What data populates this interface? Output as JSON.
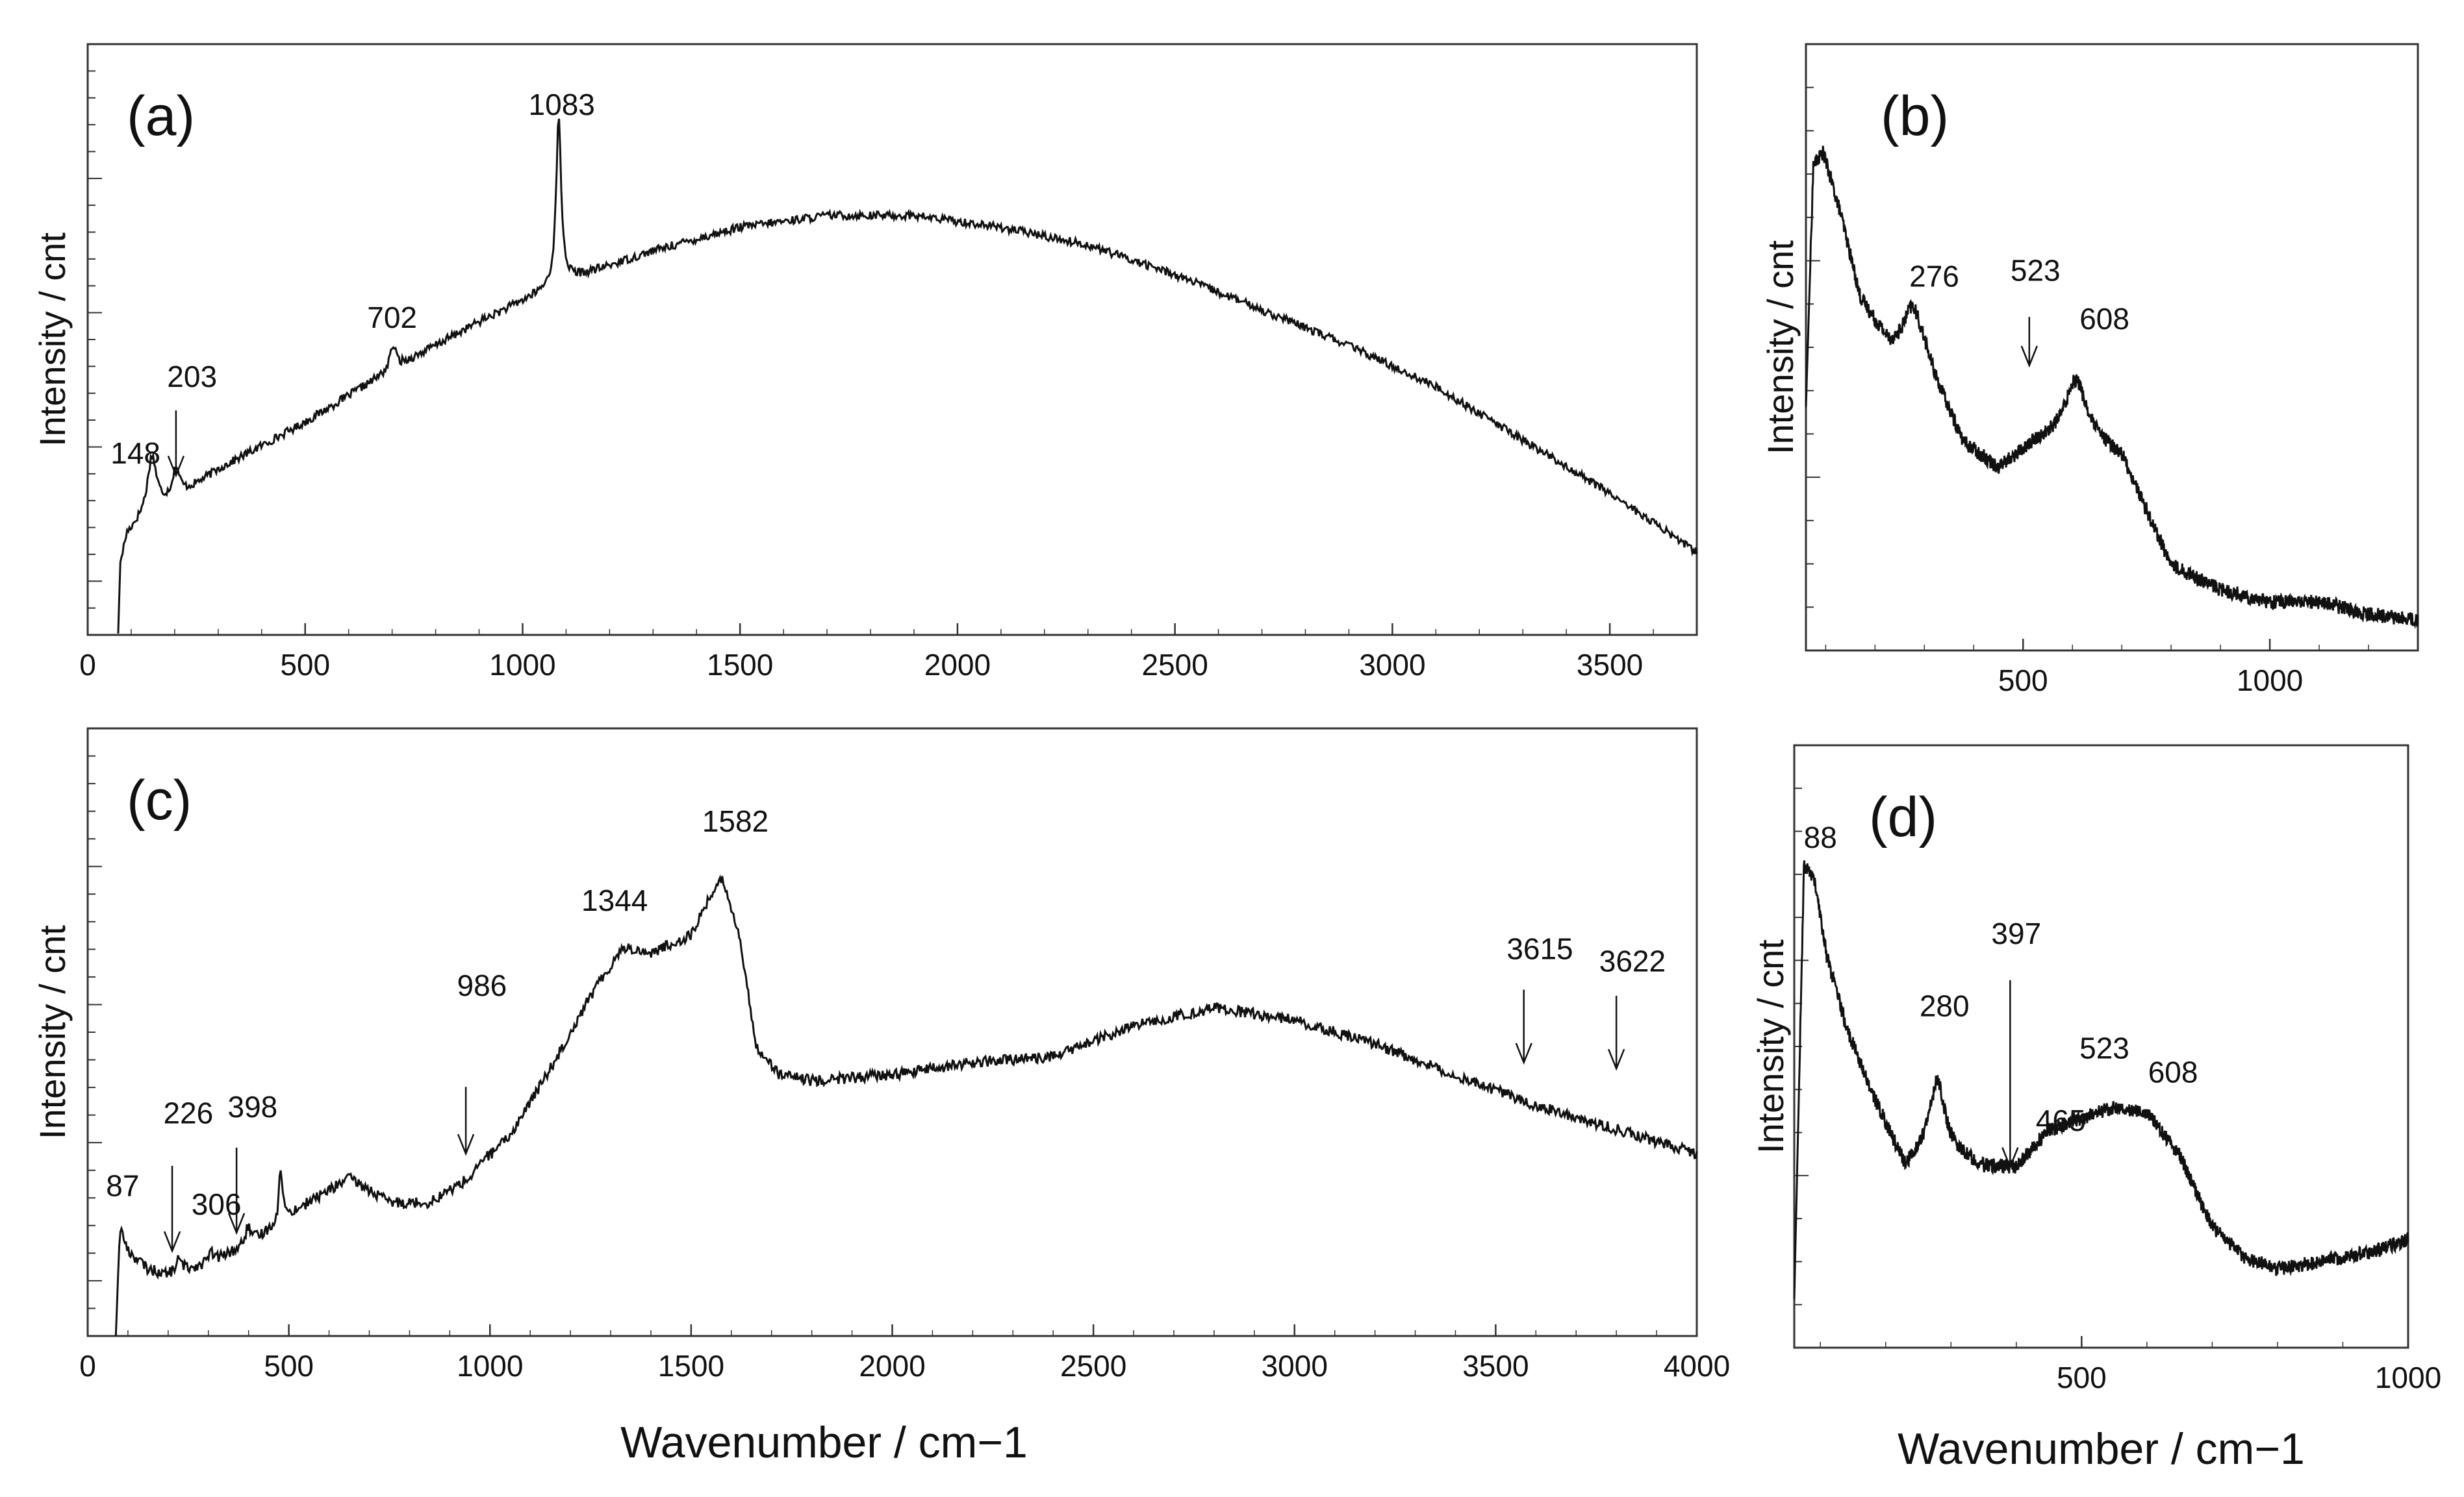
{
  "chart_data": [
    {
      "id": "a",
      "type": "line",
      "panel_label": "(a)",
      "ylabel": "Intensity / cnt",
      "xlabel": "",
      "xlim": [
        0,
        3700
      ],
      "ylim": [
        0,
        100
      ],
      "xticks": [
        0,
        500,
        1000,
        1500,
        2000,
        2500,
        3000,
        3500
      ],
      "x_tick_labels": [
        "0",
        "500",
        "1000",
        "1500",
        "2000",
        "2500",
        "3000",
        "3500"
      ],
      "baseline": [
        [
          70,
          0
        ],
        [
          75,
          12
        ],
        [
          90,
          17
        ],
        [
          140,
          21
        ],
        [
          200,
          23
        ],
        [
          300,
          28
        ],
        [
          500,
          36
        ],
        [
          700,
          45
        ],
        [
          900,
          53
        ],
        [
          1100,
          60
        ],
        [
          1300,
          65
        ],
        [
          1500,
          69
        ],
        [
          1700,
          71
        ],
        [
          1900,
          71
        ],
        [
          2100,
          69
        ],
        [
          2300,
          66
        ],
        [
          2500,
          61
        ],
        [
          2700,
          55
        ],
        [
          2900,
          49
        ],
        [
          3100,
          42
        ],
        [
          3300,
          33
        ],
        [
          3500,
          24
        ],
        [
          3700,
          14
        ]
      ],
      "peaks": [
        {
          "x": 148,
          "height": 9,
          "width": 12
        },
        {
          "x": 203,
          "height": 5,
          "width": 10
        },
        {
          "x": 702,
          "height": 4,
          "width": 8
        },
        {
          "x": 1083,
          "height": 28,
          "width": 7
        }
      ],
      "noise": 0.7,
      "annotations": [
        {
          "text": "148",
          "x": 110,
          "y": 29,
          "arrow": false
        },
        {
          "text": "203",
          "x": 240,
          "y": 42,
          "arrow": true,
          "arrow_from": 38,
          "arrow_to": 27
        },
        {
          "text": "702",
          "x": 700,
          "y": 52,
          "arrow": false
        },
        {
          "text": "1083",
          "x": 1090,
          "y": 88,
          "arrow": false
        }
      ]
    },
    {
      "id": "b",
      "type": "line",
      "panel_label": "(b)",
      "ylabel": "Intensity / cnt",
      "xlabel": "",
      "xlim": [
        60,
        1300
      ],
      "ylim": [
        0,
        100
      ],
      "xticks": [
        500,
        1000
      ],
      "x_tick_labels": [
        "500",
        "1000"
      ],
      "baseline": [
        [
          60,
          40
        ],
        [
          75,
          80
        ],
        [
          95,
          82
        ],
        [
          130,
          72
        ],
        [
          170,
          58
        ],
        [
          230,
          50
        ],
        [
          300,
          48
        ],
        [
          380,
          34
        ],
        [
          450,
          30
        ],
        [
          520,
          34
        ],
        [
          600,
          37
        ],
        [
          700,
          32
        ],
        [
          800,
          14
        ],
        [
          900,
          10
        ],
        [
          1000,
          8
        ],
        [
          1100,
          8
        ],
        [
          1200,
          6
        ],
        [
          1300,
          5
        ]
      ],
      "peaks": [
        {
          "x": 276,
          "height": 8,
          "width": 22
        },
        {
          "x": 608,
          "height": 8,
          "width": 24
        }
      ],
      "noise": 1.2,
      "annotations": [
        {
          "text": "276",
          "x": 320,
          "y": 60,
          "arrow": false
        },
        {
          "text": "523",
          "x": 525,
          "y": 61,
          "arrow": true,
          "arrow_from": 55,
          "arrow_to": 47
        },
        {
          "text": "608",
          "x": 665,
          "y": 53,
          "arrow": false
        }
      ]
    },
    {
      "id": "c",
      "type": "line",
      "panel_label": "(c)",
      "ylabel": "Intensity / cnt",
      "xlabel": "Wavenumber / cm−1",
      "xlim": [
        0,
        4000
      ],
      "ylim": [
        0,
        100
      ],
      "xticks": [
        0,
        500,
        1000,
        1500,
        2000,
        2500,
        3000,
        3500,
        4000
      ],
      "x_tick_labels": [
        "0",
        "500",
        "1000",
        "1500",
        "2000",
        "2500",
        "3000",
        "3500",
        "4000"
      ],
      "baseline": [
        [
          70,
          0
        ],
        [
          80,
          18
        ],
        [
          100,
          14
        ],
        [
          150,
          11
        ],
        [
          200,
          10
        ],
        [
          250,
          11
        ],
        [
          300,
          12
        ],
        [
          400,
          15
        ],
        [
          500,
          20
        ],
        [
          650,
          26
        ],
        [
          750,
          22
        ],
        [
          850,
          22
        ],
        [
          950,
          26
        ],
        [
          1050,
          33
        ],
        [
          1150,
          44
        ],
        [
          1250,
          56
        ],
        [
          1330,
          64
        ],
        [
          1400,
          63
        ],
        [
          1500,
          66
        ],
        [
          1560,
          74
        ],
        [
          1580,
          75
        ],
        [
          1620,
          66
        ],
        [
          1660,
          48
        ],
        [
          1720,
          43
        ],
        [
          1800,
          42
        ],
        [
          2000,
          43
        ],
        [
          2200,
          45
        ],
        [
          2400,
          46
        ],
        [
          2600,
          51
        ],
        [
          2800,
          54
        ],
        [
          3000,
          52
        ],
        [
          3200,
          48
        ],
        [
          3400,
          43
        ],
        [
          3600,
          38
        ],
        [
          3800,
          34
        ],
        [
          4000,
          30
        ]
      ],
      "peaks": [
        {
          "x": 87,
          "height": 0,
          "width": 6
        },
        {
          "x": 226,
          "height": 2,
          "width": 10
        },
        {
          "x": 306,
          "height": 1.5,
          "width": 8
        },
        {
          "x": 398,
          "height": 3,
          "width": 8
        },
        {
          "x": 480,
          "height": 9,
          "width": 5
        },
        {
          "x": 986,
          "height": 1,
          "width": 10
        }
      ],
      "noise": 0.9,
      "annotations": [
        {
          "text": "87",
          "x": 87,
          "y": 23,
          "arrow": false
        },
        {
          "text": "226",
          "x": 250,
          "y": 35,
          "arrow": true,
          "arrow_from": 28,
          "arrow_to": 14
        },
        {
          "text": "306",
          "x": 320,
          "y": 20,
          "arrow": false
        },
        {
          "text": "398",
          "x": 410,
          "y": 36,
          "arrow": true,
          "arrow_from": 31,
          "arrow_to": 17
        },
        {
          "text": "986",
          "x": 980,
          "y": 56,
          "arrow": true,
          "arrow_from": 41,
          "arrow_to": 30
        },
        {
          "text": "1344",
          "x": 1310,
          "y": 70,
          "arrow": false
        },
        {
          "text": "1582",
          "x": 1610,
          "y": 83,
          "arrow": false
        },
        {
          "text": "3615",
          "x": 3610,
          "y": 62,
          "arrow": true,
          "arrow_from": 57,
          "arrow_to": 45
        },
        {
          "text": "3622",
          "x": 3840,
          "y": 60,
          "arrow": true,
          "arrow_from": 56,
          "arrow_to": 44
        }
      ]
    },
    {
      "id": "d",
      "type": "line",
      "panel_label": "(d)",
      "ylabel": "Intensity / cnt",
      "xlabel": "Wavenumber / cm−1",
      "xlim": [
        60,
        1000
      ],
      "ylim": [
        0,
        100
      ],
      "xticks": [
        500,
        1000
      ],
      "x_tick_labels": [
        "500",
        "1000"
      ],
      "baseline": [
        [
          60,
          8
        ],
        [
          75,
          80
        ],
        [
          90,
          78
        ],
        [
          110,
          65
        ],
        [
          140,
          53
        ],
        [
          180,
          42
        ],
        [
          230,
          30
        ],
        [
          270,
          35
        ],
        [
          300,
          33
        ],
        [
          350,
          30
        ],
        [
          400,
          30
        ],
        [
          450,
          36
        ],
        [
          500,
          38
        ],
        [
          550,
          40
        ],
        [
          600,
          39
        ],
        [
          650,
          32
        ],
        [
          700,
          20
        ],
        [
          750,
          15
        ],
        [
          800,
          13
        ],
        [
          850,
          14
        ],
        [
          900,
          15
        ],
        [
          950,
          16
        ],
        [
          1000,
          18
        ]
      ],
      "peaks": [
        {
          "x": 280,
          "height": 10,
          "width": 12
        }
      ],
      "noise": 1.2,
      "annotations": [
        {
          "text": "88",
          "x": 100,
          "y": 83,
          "arrow": false
        },
        {
          "text": "280",
          "x": 290,
          "y": 55,
          "arrow": false
        },
        {
          "text": "397",
          "x": 400,
          "y": 67,
          "arrow": true,
          "arrow_from": 61,
          "arrow_to": 30
        },
        {
          "text": "465",
          "x": 468,
          "y": 36,
          "arrow": false
        },
        {
          "text": "523",
          "x": 535,
          "y": 48,
          "arrow": false
        },
        {
          "text": "608",
          "x": 640,
          "y": 44,
          "arrow": false
        }
      ]
    }
  ],
  "colors": {
    "line": "#111111",
    "axis": "#333333",
    "text": "#111111",
    "background": "#ffffff"
  }
}
